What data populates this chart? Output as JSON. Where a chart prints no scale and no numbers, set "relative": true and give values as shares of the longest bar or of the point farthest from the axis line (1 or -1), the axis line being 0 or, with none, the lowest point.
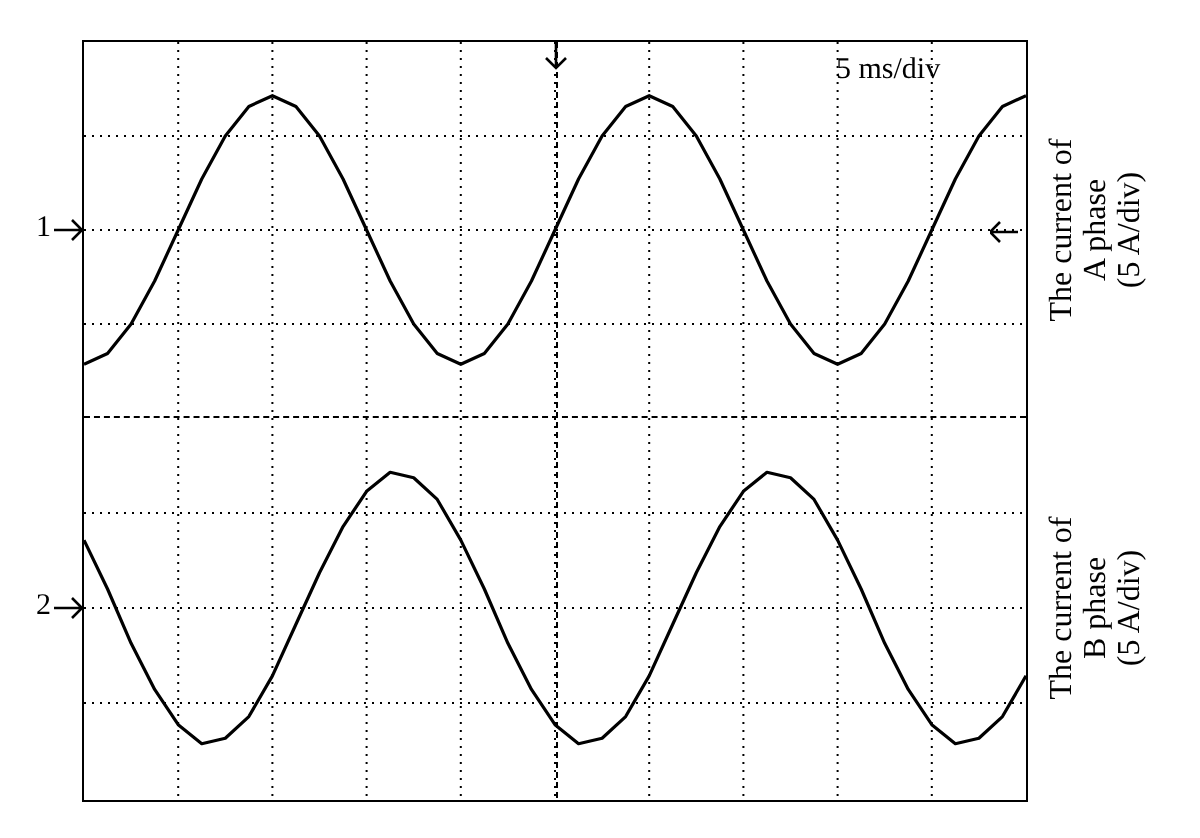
{
  "chart_data": [
    {
      "type": "line",
      "ylabel": "The current of\nA phase\n(5 A/div)",
      "annotations": [
        "1",
        "5 ms/div"
      ],
      "relative": true,
      "grid": true,
      "marker": "none",
      "color": "#000000",
      "categories": [
        null,
        null,
        null,
        null,
        null,
        null,
        null,
        null,
        null,
        null,
        null,
        null,
        null,
        null,
        null,
        null,
        null,
        null,
        null,
        null,
        null,
        null,
        null,
        null,
        null,
        null,
        null,
        null,
        null,
        null,
        null,
        null,
        null,
        null,
        null,
        null,
        null,
        null,
        null,
        null,
        null
      ],
      "values": [
        -1,
        -0.92,
        -0.7,
        -0.38,
        0,
        0.38,
        0.7,
        0.92,
        1,
        0.92,
        0.7,
        0.38,
        0,
        -0.38,
        -0.7,
        -0.92,
        -1,
        -0.92,
        -0.7,
        -0.38,
        0,
        0.38,
        0.7,
        0.92,
        1,
        0.92,
        0.7,
        0.38,
        0,
        -0.38,
        -0.7,
        -0.92,
        -1,
        -0.92,
        -0.7,
        -0.38,
        0,
        0.38,
        0.7,
        0.92,
        1
      ]
    },
    {
      "type": "line",
      "ylabel": "The current of\nB phase\n(5 A/div)",
      "annotations": [
        "2"
      ],
      "relative": true,
      "grid": true,
      "marker": "none",
      "color": "#000000",
      "categories": [
        null,
        null,
        null,
        null,
        null,
        null,
        null,
        null,
        null,
        null,
        null,
        null,
        null,
        null,
        null,
        null,
        null,
        null,
        null,
        null,
        null,
        null,
        null,
        null,
        null,
        null,
        null,
        null,
        null,
        null,
        null,
        null,
        null,
        null,
        null,
        null,
        null,
        null,
        null,
        null,
        null
      ],
      "values": [
        0.5,
        0.14,
        -0.26,
        -0.6,
        -0.86,
        -1,
        -0.96,
        -0.8,
        -0.5,
        -0.12,
        0.26,
        0.6,
        0.86,
        1,
        0.96,
        0.8,
        0.5,
        0.14,
        -0.26,
        -0.6,
        -0.86,
        -1,
        -0.96,
        -0.8,
        -0.5,
        -0.12,
        0.26,
        0.6,
        0.86,
        1,
        0.96,
        0.8,
        0.5,
        0.14,
        -0.26,
        -0.6,
        -0.86,
        -1,
        -0.96,
        -0.8,
        -0.5
      ]
    }
  ]
}
